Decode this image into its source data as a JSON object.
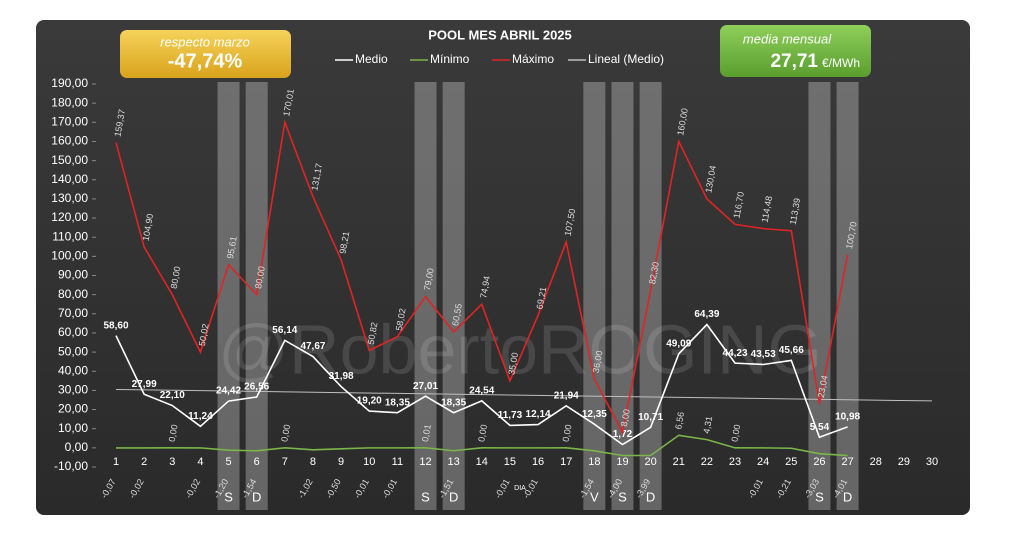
{
  "chart_data": {
    "type": "line",
    "title": "POOL  MES ABRIL 2025",
    "xlabel": "DIA",
    "watermark": "@RobertoROGING",
    "box_left": {
      "label": "respecto marzo",
      "value": -47.74,
      "value_label": "-47,74%"
    },
    "box_right": {
      "label": "media mensual",
      "value": 27.71,
      "value_label": "27,71",
      "unit": "€/MWh"
    },
    "x": [
      1,
      2,
      3,
      4,
      5,
      6,
      7,
      8,
      9,
      10,
      11,
      12,
      13,
      14,
      15,
      16,
      17,
      18,
      19,
      20,
      21,
      22,
      23,
      24,
      25,
      26,
      27,
      28,
      29,
      30
    ],
    "xlim": [
      1,
      30
    ],
    "ylim": [
      -10,
      190
    ],
    "yticks": [
      {
        "value": -10,
        "label": "-10,00"
      },
      {
        "value": 0,
        "label": "0,00"
      },
      {
        "value": 10,
        "label": "10,00"
      },
      {
        "value": 20,
        "label": "20,00"
      },
      {
        "value": 30,
        "label": "30,00"
      },
      {
        "value": 40,
        "label": "40,00"
      },
      {
        "value": 50,
        "label": "50,00"
      },
      {
        "value": 60,
        "label": "60,00"
      },
      {
        "value": 70,
        "label": "70,00"
      },
      {
        "value": 80,
        "label": "80,00"
      },
      {
        "value": 90,
        "label": "90,00"
      },
      {
        "value": 100,
        "label": "100,00"
      },
      {
        "value": 110,
        "label": "110,00"
      },
      {
        "value": 120,
        "label": "120,00"
      },
      {
        "value": 130,
        "label": "130,00"
      },
      {
        "value": 140,
        "label": "140,00"
      },
      {
        "value": 150,
        "label": "150,00"
      },
      {
        "value": 160,
        "label": "160,00"
      },
      {
        "value": 170,
        "label": "170,00"
      },
      {
        "value": 180,
        "label": "180,00"
      },
      {
        "value": 190,
        "label": "190,00"
      }
    ],
    "grid": false,
    "series": [
      {
        "name": "Medio",
        "color": "#ffffff",
        "label_style": "medio",
        "values": [
          58.6,
          27.99,
          22.1,
          11.24,
          24.42,
          26.56,
          56.14,
          47.67,
          31.98,
          19.2,
          18.35,
          27.01,
          18.35,
          24.54,
          11.73,
          12.14,
          21.94,
          12.35,
          1.72,
          10.71,
          49.09,
          64.39,
          44.23,
          43.53,
          45.66,
          5.54,
          10.98,
          null,
          null,
          null
        ],
        "value_labels": [
          "58,60",
          "27,99",
          "22,10",
          "11,24",
          "24,42",
          "26,56",
          "56,14",
          "47,67",
          "31,98",
          "19,20",
          "18,35",
          "27,01",
          "18,35",
          "24,54",
          "11,73",
          "12,14",
          "21,94",
          "12,35",
          "1,72",
          "10,71",
          "49,09",
          "64,39",
          "44,23",
          "43,53",
          "45,66",
          "5,54",
          "10,98",
          null,
          null,
          null
        ]
      },
      {
        "name": "Mínimo",
        "color": "#7ab648",
        "label_style": "minimo",
        "values": [
          -0.07,
          -0.02,
          0.0,
          -0.02,
          -1.2,
          -1.54,
          0.0,
          -1.02,
          -0.5,
          -0.01,
          -0.01,
          0.01,
          -1.51,
          0.0,
          -0.01,
          -0.01,
          0.0,
          -1.54,
          -4.0,
          -3.99,
          6.56,
          4.31,
          0.0,
          -0.01,
          -0.21,
          -3.03,
          -4.01,
          null,
          null,
          null
        ],
        "value_labels": [
          "-0,07",
          "-0,02",
          "0,00",
          "-0,02",
          "-1,20",
          "-1,54",
          "0,00",
          "-1,02",
          "-0,50",
          "-0,01",
          "-0,01",
          "0,01",
          "-1,51",
          "0,00",
          "-0,01",
          "-0,01",
          "0,00",
          "-1,54",
          "-4,00",
          "-3,99",
          "6,56",
          "4,31",
          "0,00",
          "-0,01",
          "-0,21",
          "-3,03",
          "-4,01",
          null,
          null,
          null
        ]
      },
      {
        "name": "Máximo",
        "color": "#e02424",
        "label_style": "maximo",
        "values": [
          159.37,
          104.9,
          80.0,
          50.02,
          95.61,
          80.0,
          170.01,
          131.17,
          98.21,
          50.82,
          58.02,
          79.0,
          60.55,
          74.94,
          35.0,
          69.21,
          107.5,
          36.0,
          8.0,
          82.3,
          160.0,
          130.04,
          116.7,
          114.48,
          113.39,
          23.04,
          100.7,
          null,
          null,
          null
        ],
        "value_labels": [
          "159,37",
          "104,90",
          "80,00",
          "50,02",
          "95,61",
          "80,00",
          "170,01",
          "131,17",
          "98,21",
          "50,82",
          "58,02",
          "79,00",
          "60,55",
          "74,94",
          "35,00",
          "69,21",
          "107,50",
          "36,00",
          "8,00",
          "82,30",
          "160,00",
          "130,04",
          "116,70",
          "114,48",
          "113,39",
          "23,04",
          "100,70",
          null,
          null,
          null
        ]
      }
    ],
    "trendline": {
      "name": "Lineal (Medio)",
      "color": "#bfbfbf",
      "x": [
        1,
        30
      ],
      "values": [
        30.5,
        24.5
      ]
    },
    "shaded_days": [
      {
        "day": 5,
        "label": "S"
      },
      {
        "day": 6,
        "label": "D"
      },
      {
        "day": 12,
        "label": "S"
      },
      {
        "day": 13,
        "label": "D"
      },
      {
        "day": 18,
        "label": "V"
      },
      {
        "day": 19,
        "label": "S"
      },
      {
        "day": 20,
        "label": "D"
      },
      {
        "day": 26,
        "label": "S"
      },
      {
        "day": 27,
        "label": "D"
      }
    ]
  }
}
